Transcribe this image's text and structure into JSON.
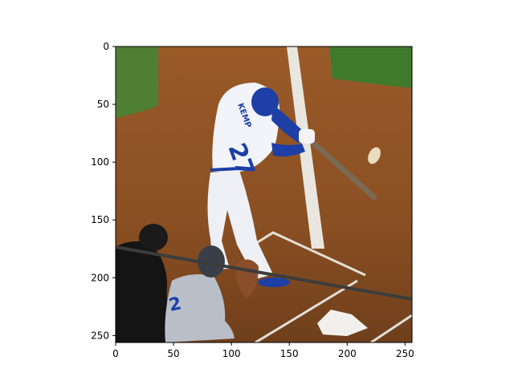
{
  "chart_data": {
    "type": "image",
    "title": "",
    "xlabel": "",
    "ylabel": "",
    "xlim": [
      0,
      256
    ],
    "ylim": [
      256,
      0
    ],
    "x_ticks": [
      0,
      50,
      100,
      150,
      200,
      250
    ],
    "y_ticks": [
      0,
      50,
      100,
      150,
      200,
      250
    ],
    "grid": false,
    "image_text": {
      "jersey_name": "KEMP",
      "jersey_number": "27"
    }
  },
  "colors": {
    "dirt": "#8a4f22",
    "grass": "#4f7f33",
    "chalk": "#e9e6df",
    "uniform_white": "#f2f4fa",
    "dodger_blue": "#1d3fa6",
    "umpire_black": "#141414"
  }
}
